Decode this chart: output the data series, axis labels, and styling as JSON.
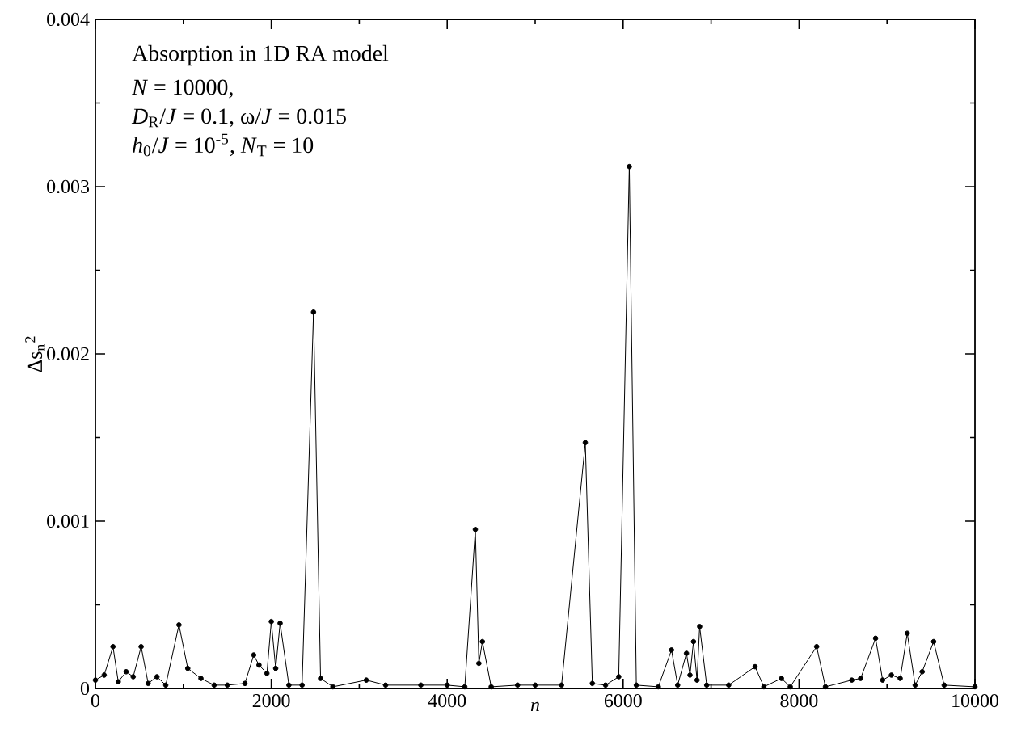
{
  "chart_data": {
    "type": "line",
    "xlabel": "n",
    "ylabel": "Δs$_{n}$$^{2}$",
    "annotations": [
      "Absorption in 1D RA model",
      "*N* = 10000,",
      "*D*$_{R}$/*J* = 0.1,  ω/*J* = 0.015",
      "*h*$_{0}$/*J* = 10$^{-5}$, *N*$_{T}$ = 10"
    ],
    "x": [
      0,
      100,
      200,
      260,
      350,
      430,
      520,
      600,
      700,
      800,
      950,
      1050,
      1200,
      1350,
      1500,
      1700,
      1800,
      1860,
      1950,
      2000,
      2050,
      2100,
      2200,
      2350,
      2480,
      2560,
      2700,
      3080,
      3300,
      3700,
      4000,
      4200,
      4320,
      4360,
      4400,
      4500,
      4800,
      5000,
      5300,
      5570,
      5650,
      5800,
      5950,
      6070,
      6150,
      6400,
      6550,
      6620,
      6720,
      6760,
      6800,
      6840,
      6870,
      6950,
      7200,
      7500,
      7600,
      7800,
      7900,
      8200,
      8300,
      8600,
      8700,
      8870,
      8950,
      9050,
      9150,
      9230,
      9320,
      9400,
      9530,
      9650,
      10000
    ],
    "series": [
      {
        "color": "#000000",
        "values": [
          5e-05,
          8e-05,
          0.00025,
          4e-05,
          0.0001,
          7e-05,
          0.00025,
          3e-05,
          7e-05,
          2e-05,
          0.00038,
          0.00012,
          6e-05,
          2e-05,
          2e-05,
          3e-05,
          0.0002,
          0.00014,
          9e-05,
          0.0004,
          0.00012,
          0.00039,
          2e-05,
          2e-05,
          0.00225,
          6e-05,
          1e-05,
          5e-05,
          2e-05,
          2e-05,
          2e-05,
          1e-05,
          0.00095,
          0.00015,
          0.00028,
          1e-05,
          2e-05,
          2e-05,
          2e-05,
          0.00147,
          3e-05,
          2e-05,
          7e-05,
          0.00312,
          2e-05,
          1e-05,
          0.00023,
          2e-05,
          0.00021,
          8e-05,
          0.00028,
          5e-05,
          0.00037,
          2e-05,
          2e-05,
          0.00013,
          1e-05,
          6e-05,
          1e-05,
          0.00025,
          1e-05,
          5e-05,
          6e-05,
          0.0003,
          5e-05,
          8e-05,
          6e-05,
          0.00033,
          2e-05,
          0.0001,
          0.00028,
          2e-05,
          1e-05
        ]
      }
    ],
    "marker": "circle",
    "line_style": "solid",
    "xlim": [
      0,
      10000
    ],
    "ylim": [
      0,
      0.004
    ],
    "xticks": [
      0,
      2000,
      4000,
      6000,
      8000,
      10000
    ],
    "yticks": [
      0,
      0.001,
      0.002,
      0.003,
      0.004
    ]
  }
}
